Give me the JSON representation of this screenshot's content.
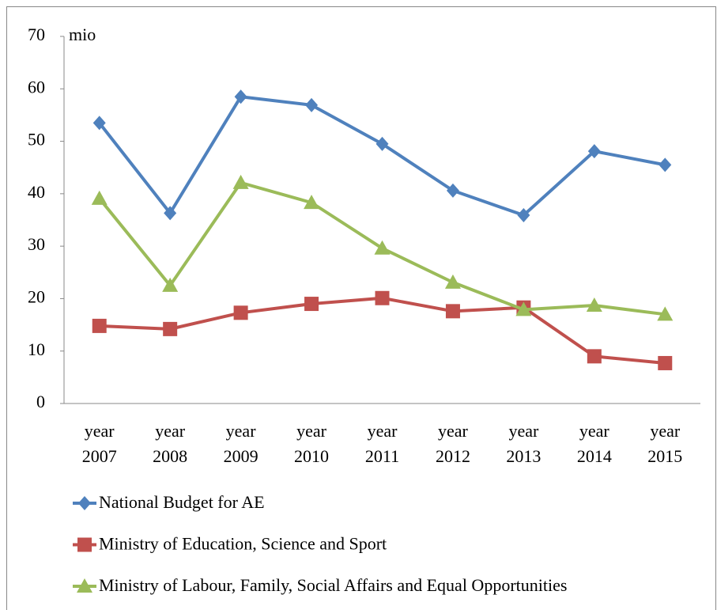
{
  "chart_data": {
    "type": "line",
    "y_unit_label": "mio",
    "categories": [
      "year 2007",
      "year 2008",
      "year 2009",
      "year 2010",
      "year 2011",
      "year 2012",
      "year 2013",
      "year 2014",
      "year 2015"
    ],
    "series": [
      {
        "name": "National Budget for AE",
        "color": "#4f81bd",
        "marker": "diamond",
        "values": [
          53.5,
          36.3,
          58.5,
          56.9,
          49.5,
          40.6,
          35.9,
          48.1,
          45.5
        ]
      },
      {
        "name": "Ministry of Education, Science and Sport",
        "color": "#c0504d",
        "marker": "square",
        "values": [
          14.8,
          14.2,
          17.3,
          19.0,
          20.1,
          17.6,
          18.3,
          9.0,
          7.7
        ]
      },
      {
        "name": "Ministry of Labour, Family, Social Affairs and Equal Opportunities",
        "color": "#9bbb59",
        "marker": "triangle",
        "values": [
          39.1,
          22.5,
          42.1,
          38.3,
          29.6,
          23.1,
          17.9,
          18.7,
          17.0
        ]
      }
    ],
    "ylim": [
      0,
      70
    ],
    "yticks": [
      0,
      10,
      20,
      30,
      40,
      50,
      60,
      70
    ],
    "grid": false,
    "legend": "bottom"
  }
}
